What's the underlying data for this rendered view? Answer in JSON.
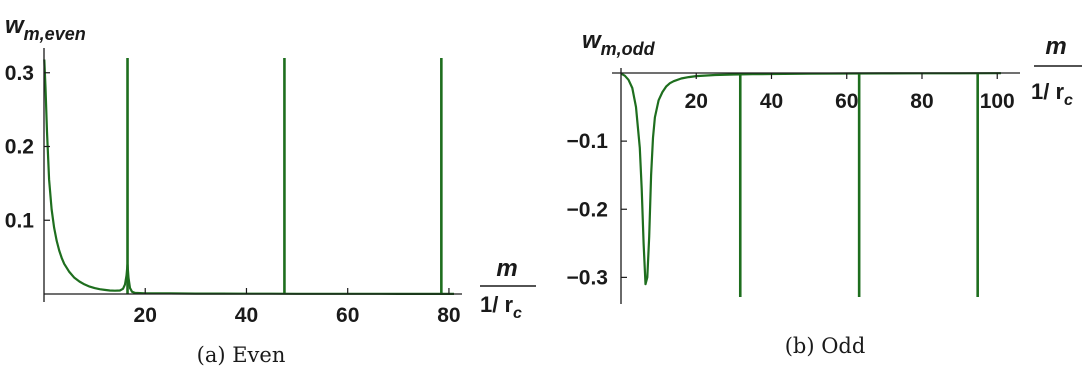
{
  "chart_data": [
    {
      "type": "line",
      "panel": "even",
      "ylabel_main": "w",
      "ylabel_sub": "m,even",
      "xlabel_num": "m",
      "xlabel_den_main": "1/ r",
      "xlabel_den_sub": "c",
      "caption": "(a) Even",
      "xlim": [
        0,
        81
      ],
      "ylim": [
        0,
        0.32
      ],
      "x_ticks": [
        20,
        40,
        60,
        80
      ],
      "x_tick_labels": [
        "20",
        "40",
        "60",
        "80"
      ],
      "y_ticks": [
        0.1,
        0.2,
        0.3
      ],
      "y_tick_labels": [
        "0.1",
        "0.2",
        "0.3"
      ],
      "color": "#1e6e1e",
      "series": [
        {
          "x": [
            0.05,
            0.3,
            0.6,
            1.0,
            1.5,
            2,
            2.5,
            3,
            3.5,
            4,
            5,
            6,
            7,
            8,
            9,
            10,
            11,
            12,
            13,
            14,
            15,
            15.6,
            16.0,
            16.3,
            16.5,
            16.7,
            17.0,
            17.4,
            18,
            20,
            25,
            30,
            35,
            40,
            45,
            50,
            55,
            60,
            65,
            70,
            75,
            80,
            81
          ],
          "y": [
            0.318,
            0.28,
            0.22,
            0.155,
            0.115,
            0.09,
            0.072,
            0.059,
            0.049,
            0.041,
            0.03,
            0.022,
            0.017,
            0.013,
            0.01,
            0.008,
            0.0065,
            0.0055,
            0.0048,
            0.0045,
            0.0048,
            0.007,
            0.013,
            0.025,
            0.04,
            0.022,
            0.008,
            0.003,
            0.0015,
            0.001,
            0.0008,
            0.0006,
            0.0005,
            0.0004,
            0.0004,
            0.0003,
            0.0003,
            0.0003,
            0.0003,
            0.0002,
            0.0002,
            0.0002,
            0.0002
          ]
        }
      ],
      "spikes": [
        16.5,
        47.5,
        78.5
      ]
    },
    {
      "type": "line",
      "panel": "odd",
      "ylabel_main": "w",
      "ylabel_sub": "m,odd",
      "xlabel_num": "m",
      "xlabel_den_main": "1/ r",
      "xlabel_den_sub": "c",
      "caption": "(b) Odd",
      "xlim": [
        0,
        101
      ],
      "ylim": [
        -0.32,
        0
      ],
      "x_ticks": [
        20,
        40,
        60,
        80,
        100
      ],
      "x_tick_labels": [
        "20",
        "40",
        "60",
        "80",
        "100"
      ],
      "y_ticks": [
        -0.1,
        -0.2,
        -0.3
      ],
      "y_tick_labels": [
        "−0.1",
        "−0.2",
        "−0.3"
      ],
      "color": "#1e6e1e",
      "series": [
        {
          "x": [
            0.05,
            1,
            2,
            3,
            4,
            5,
            5.5,
            6,
            6.5,
            7,
            7.5,
            8,
            8.5,
            9,
            10,
            11,
            12,
            13,
            14,
            16,
            18,
            20,
            25,
            30,
            35,
            40,
            50,
            60,
            70,
            80,
            90,
            100,
            101
          ],
          "y": [
            -0.001,
            -0.004,
            -0.01,
            -0.022,
            -0.05,
            -0.11,
            -0.17,
            -0.25,
            -0.31,
            -0.3,
            -0.24,
            -0.15,
            -0.095,
            -0.065,
            -0.04,
            -0.028,
            -0.02,
            -0.015,
            -0.012,
            -0.008,
            -0.006,
            -0.0045,
            -0.003,
            -0.0022,
            -0.0017,
            -0.0014,
            -0.001,
            -0.0008,
            -0.0006,
            -0.0005,
            -0.0004,
            -0.0003,
            -0.0003
          ]
        }
      ],
      "spikes": [
        31.7,
        63.3,
        94.8
      ]
    }
  ]
}
